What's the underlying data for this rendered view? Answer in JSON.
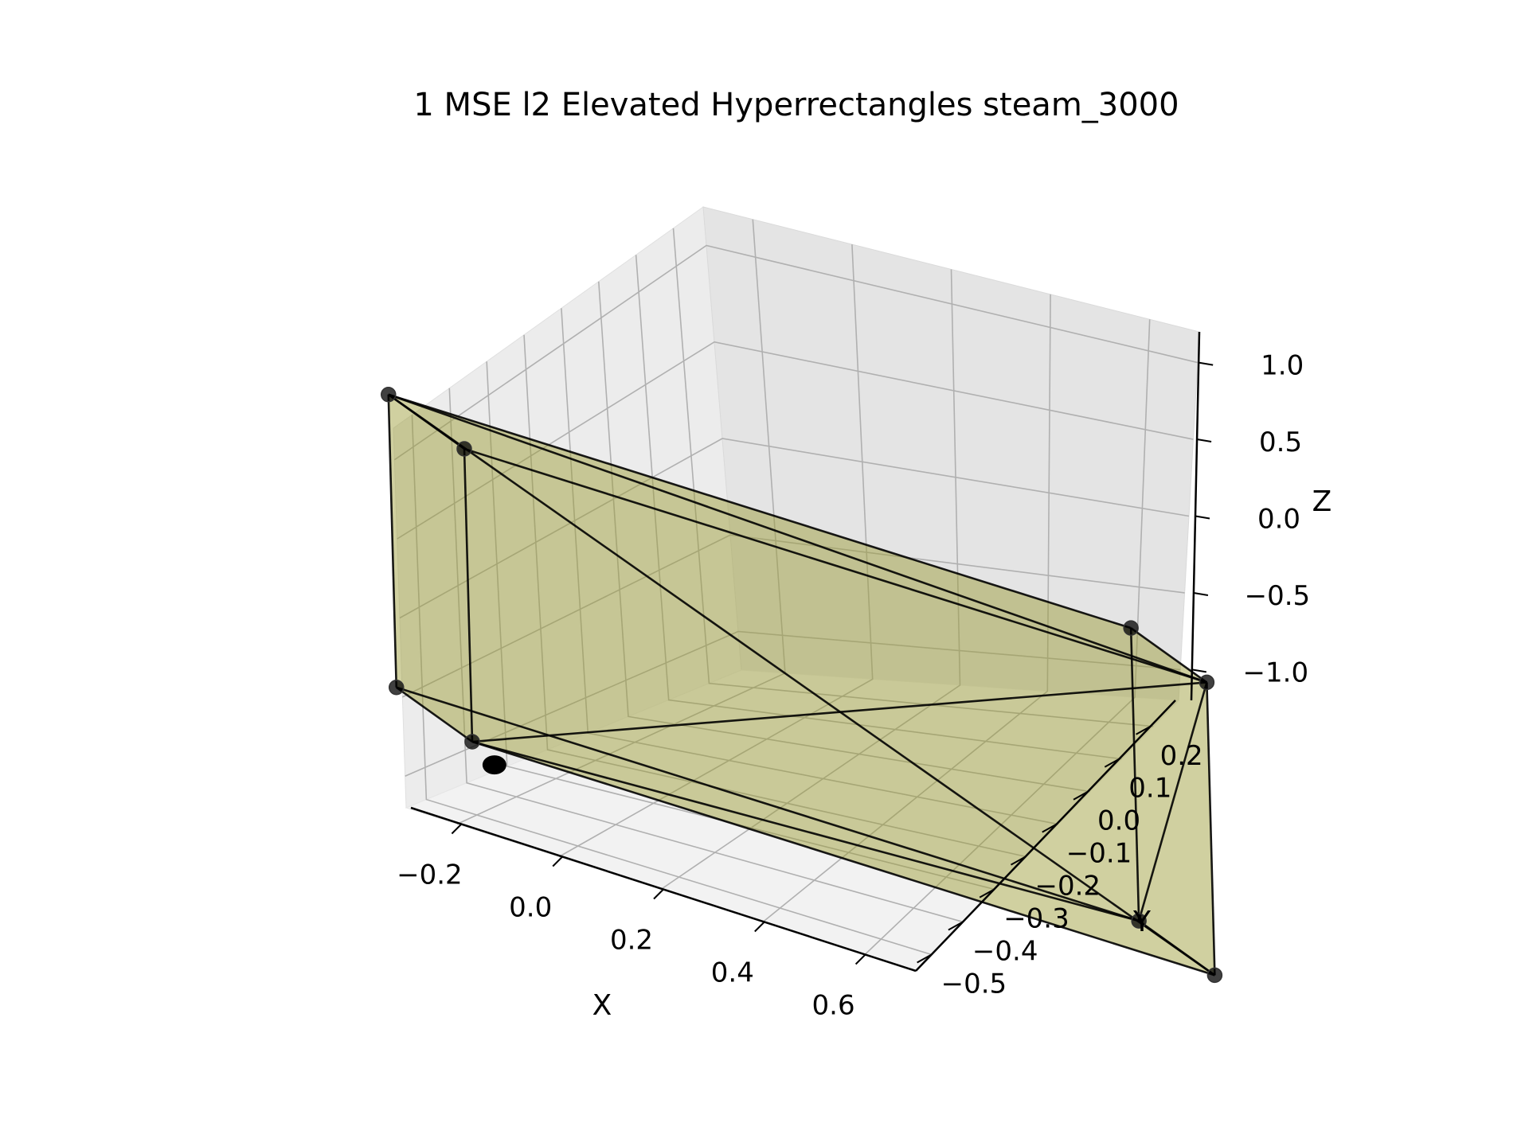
{
  "chart_data": {
    "type": "3d-polyhedron",
    "title": "1 MSE l2 Elevated Hyperrectangles steam_3000",
    "xlabel": "X",
    "ylabel": "Y",
    "zlabel": "Z",
    "xticks": [
      "−0.2",
      "0.0",
      "0.2",
      "0.4",
      "0.6"
    ],
    "yticks": [
      "−0.5",
      "−0.4",
      "−0.3",
      "−0.2",
      "−0.1",
      "0.0",
      "0.1",
      "0.2"
    ],
    "zticks": [
      "−1.0",
      "−0.5",
      "0.0",
      "0.5",
      "1.0"
    ],
    "xlim": [
      -0.3,
      0.7
    ],
    "ylim": [
      -0.55,
      0.28
    ],
    "zlim": [
      -1.2,
      1.2
    ],
    "grid": true,
    "hyperrectangle": {
      "color": "#9b9b33",
      "alpha": 0.6,
      "vertices": [
        {
          "x": -0.25,
          "y": -0.5,
          "z": -1.0
        },
        {
          "x": -0.25,
          "y": -0.5,
          "z": 1.0
        },
        {
          "x": -0.25,
          "y": 0.25,
          "z": -1.0
        },
        {
          "x": -0.25,
          "y": 0.25,
          "z": 1.0
        },
        {
          "x": 0.65,
          "y": -0.5,
          "z": -1.0
        },
        {
          "x": 0.65,
          "y": -0.5,
          "z": 1.0
        },
        {
          "x": 0.65,
          "y": 0.25,
          "z": -1.0
        },
        {
          "x": 0.65,
          "y": 0.25,
          "z": 1.0
        }
      ]
    },
    "point": {
      "x": -0.22,
      "y": -0.47,
      "z": -1.12
    }
  }
}
